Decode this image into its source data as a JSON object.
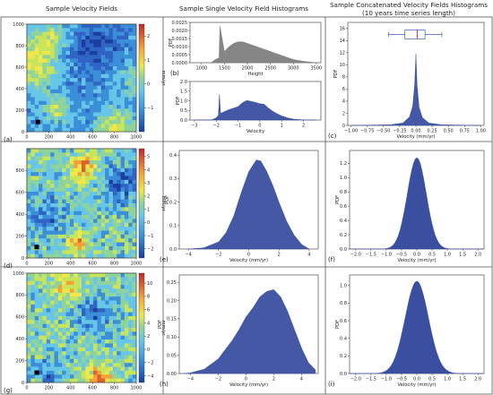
{
  "headers": {
    "col1": "Sample Velocity Fields",
    "col2": "Sample Single Velocity Field Histograms",
    "col3_line1": "Sample Concatenated Velocity Fields Histograms",
    "col3_line2": "(10 years time series length)"
  },
  "colors": {
    "hist_blue": "#3a4fa0",
    "hist_gray": "#808080",
    "grid_line": "#555555",
    "box_median": "#d62728",
    "box_edge": "#3b5bb5"
  },
  "colorbar_unit": "mm/yr",
  "chart_data": [
    {
      "id": "a",
      "type": "heatmap",
      "label": "(a)",
      "xlim": [
        0,
        1000
      ],
      "ylim": [
        0,
        1000
      ],
      "xticks": [
        "0",
        "200",
        "400",
        "600",
        "800",
        "1000"
      ],
      "yticks": [
        "0",
        "200",
        "400",
        "600",
        "800",
        "1000"
      ],
      "colorbar": {
        "ticks": [
          "2",
          "1",
          "0",
          "−1"
        ],
        "vmin": -2,
        "vmax": 2.5,
        "unit": "mm/yr"
      },
      "marker": {
        "x": 100,
        "y": 90
      }
    },
    {
      "id": "b_top",
      "type": "area",
      "label": "(b)",
      "xlabel": "Height",
      "ylabel": "PDF",
      "xlim": [
        750,
        3600
      ],
      "ylim": [
        0,
        0.0025
      ],
      "xticks": [
        "1000",
        "1500",
        "2000",
        "2500",
        "3000",
        "3500"
      ],
      "yticks": [
        "0.0000",
        "0.0005",
        "0.0010",
        "0.0015",
        "0.0020",
        "0.0025"
      ],
      "x": [
        1000,
        1200,
        1300,
        1380,
        1400,
        1500,
        1600,
        1700,
        1800,
        1900,
        2000,
        2100,
        2200,
        2300,
        2400,
        2500,
        2600,
        2700,
        2800,
        2900,
        3000,
        3200,
        3500
      ],
      "values": [
        0,
        0,
        0.0002,
        0.0003,
        0.0023,
        0.0007,
        0.001,
        0.0012,
        0.0013,
        0.0013,
        0.0012,
        0.0011,
        0.001,
        0.0009,
        0.0008,
        0.0007,
        0.0006,
        0.0005,
        0.0004,
        0.0003,
        0.0002,
        0.0001,
        0
      ]
    },
    {
      "id": "b_bot",
      "type": "area",
      "xlabel": "Velocity",
      "ylabel": "PDF",
      "xlim": [
        -3.2,
        2.8
      ],
      "ylim": [
        0,
        2.0
      ],
      "xticks": [
        "−3",
        "−2",
        "−1",
        "0",
        "1",
        "2"
      ],
      "yticks": [
        "0.0",
        "0.5",
        "1.0",
        "1.5",
        "2.0"
      ],
      "x": [
        -3,
        -2.2,
        -2.0,
        -1.9,
        -1.85,
        -1.8,
        -1.6,
        -1.4,
        -1.2,
        -1.0,
        -0.8,
        -0.6,
        -0.4,
        -0.2,
        0,
        0.2,
        0.4,
        0.6,
        0.8,
        1.0,
        1.3,
        1.6,
        2.0,
        2.6
      ],
      "values": [
        0,
        0.01,
        0.12,
        0.25,
        1.35,
        0.35,
        0.45,
        0.55,
        0.62,
        0.7,
        0.9,
        1.02,
        0.97,
        0.92,
        0.85,
        0.82,
        0.62,
        0.45,
        0.32,
        0.22,
        0.1,
        0.04,
        0.01,
        0
      ]
    },
    {
      "id": "c",
      "type": "area",
      "label": "(c)",
      "xlabel": "Velocity (mm/yr)",
      "ylabel": "PDF",
      "xlim": [
        -1.05,
        1.05
      ],
      "ylim": [
        0,
        17
      ],
      "xticks": [
        "−1.00",
        "−0.75",
        "−0.50",
        "−0.25",
        "0.00",
        "0.25",
        "0.50",
        "0.75",
        "1.00"
      ],
      "yticks": [
        "0",
        "2",
        "4",
        "6",
        "8",
        "10",
        "12",
        "14",
        "16"
      ],
      "x": [
        -1.0,
        -0.4,
        -0.2,
        -0.1,
        -0.05,
        -0.02,
        0,
        0.02,
        0.05,
        0.1,
        0.2,
        0.4,
        1.0
      ],
      "values": [
        0,
        0.1,
        0.4,
        1.4,
        3.2,
        6.8,
        11.8,
        6.5,
        3.0,
        1.3,
        0.4,
        0.1,
        0
      ],
      "boxplot": {
        "whisker_low": -0.42,
        "q1": -0.17,
        "median": 0.02,
        "q3": 0.14,
        "whisker_high": 0.4
      }
    },
    {
      "id": "d",
      "type": "heatmap",
      "label": "(d)",
      "xlim": [
        0,
        1000
      ],
      "ylim": [
        0,
        1000
      ],
      "xticks": [
        "0",
        "200",
        "400",
        "600",
        "800",
        "1000"
      ],
      "yticks": [
        "0",
        "200",
        "400",
        "600",
        "800"
      ],
      "colorbar": {
        "ticks": [
          "5",
          "4",
          "3",
          "2",
          "1",
          "0",
          "−1",
          "−2"
        ],
        "vmin": -2.7,
        "vmax": 5.6,
        "unit": "mm/yr"
      },
      "marker": {
        "x": 90,
        "y": 100
      }
    },
    {
      "id": "e",
      "type": "area",
      "label": "(e)",
      "xlabel": "Velocity (mm/yr)",
      "ylabel": "PDF",
      "xlim": [
        -4.6,
        4.6
      ],
      "ylim": [
        0,
        0.42
      ],
      "xticks": [
        "−4",
        "−2",
        "0",
        "2",
        "4"
      ],
      "yticks": [
        "0.0",
        "0.1",
        "0.2",
        "0.3",
        "0.4"
      ],
      "x": [
        -4,
        -3,
        -2,
        -1.5,
        -1,
        -0.5,
        0,
        0.5,
        0.8,
        1.2,
        1.6,
        2,
        2.5,
        3,
        3.5,
        4
      ],
      "values": [
        0,
        0.005,
        0.03,
        0.07,
        0.14,
        0.24,
        0.33,
        0.38,
        0.375,
        0.33,
        0.27,
        0.2,
        0.12,
        0.06,
        0.02,
        0
      ]
    },
    {
      "id": "f",
      "type": "area",
      "label": "(f)",
      "xlabel": "Velocity (mm/yr)",
      "ylabel": "PDF",
      "xlim": [
        -2.2,
        2.2
      ],
      "ylim": [
        0,
        1.38
      ],
      "xticks": [
        "−2.0",
        "−1.5",
        "−1.0",
        "−0.5",
        "0.0",
        "0.5",
        "1.0",
        "1.5",
        "2.0"
      ],
      "yticks": [
        "0.0",
        "0.2",
        "0.4",
        "0.6",
        "0.8",
        "1.0",
        "1.2"
      ],
      "mean": 0,
      "std": 0.31,
      "peak": 1.28
    },
    {
      "id": "g",
      "type": "heatmap",
      "label": "(g)",
      "xlim": [
        0,
        1000
      ],
      "ylim": [
        0,
        1000
      ],
      "xticks": [
        "0",
        "200",
        "400",
        "600",
        "800",
        "1000"
      ],
      "yticks": [
        "0",
        "200",
        "400",
        "600",
        "800",
        "1000"
      ],
      "colorbar": {
        "ticks": [
          "10",
          "8",
          "6",
          "4",
          "2",
          "0",
          "−2",
          "−4"
        ],
        "vmin": -5,
        "vmax": 11.5,
        "unit": "mm/yr"
      },
      "marker": {
        "x": 90,
        "y": 90
      }
    },
    {
      "id": "h",
      "type": "area",
      "label": "(h)",
      "xlabel": "Velocity (mm/yr)",
      "ylabel": "PDF",
      "xlim": [
        -4.8,
        5.2
      ],
      "ylim": [
        0,
        0.27
      ],
      "xticks": [
        "−4",
        "−2",
        "0",
        "2",
        "4"
      ],
      "yticks": [
        "0.00",
        "0.05",
        "0.10",
        "0.15",
        "0.20",
        "0.25"
      ],
      "x": [
        -4.5,
        -4,
        -3,
        -2,
        -1,
        -0.5,
        0,
        0.5,
        1,
        1.5,
        2,
        2.5,
        3,
        3.5,
        4,
        4.5,
        5
      ],
      "values": [
        0,
        0.002,
        0.012,
        0.04,
        0.09,
        0.12,
        0.155,
        0.18,
        0.21,
        0.225,
        0.23,
        0.21,
        0.17,
        0.12,
        0.07,
        0.03,
        0.01
      ]
    },
    {
      "id": "i",
      "type": "area",
      "label": "(i)",
      "xlabel": "Velocity (mm/yr)",
      "ylabel": "PDF",
      "xlim": [
        -2.2,
        2.2
      ],
      "ylim": [
        0,
        1.12
      ],
      "xticks": [
        "−2.0",
        "−1.5",
        "−1.0",
        "−0.5",
        "0.0",
        "0.5",
        "1.0",
        "1.5",
        "2.0"
      ],
      "yticks": [
        "0.0",
        "0.2",
        "0.4",
        "0.6",
        "0.8",
        "1.0"
      ],
      "mean": 0,
      "std": 0.38,
      "peak": 1.05
    }
  ]
}
